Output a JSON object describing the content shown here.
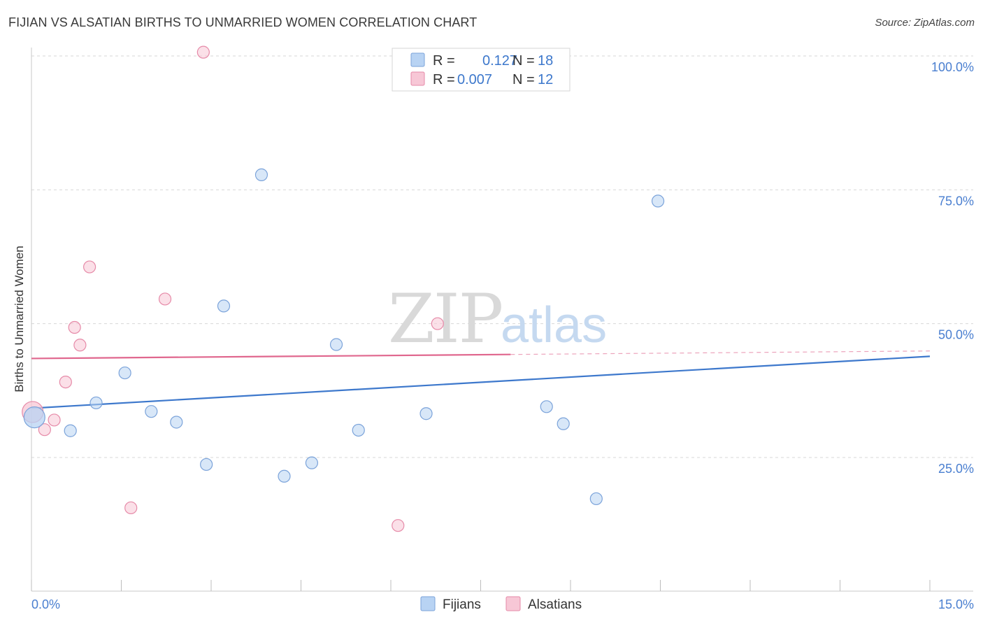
{
  "title": "FIJIAN VS ALSATIAN BIRTHS TO UNMARRIED WOMEN CORRELATION CHART",
  "source": "Source: ZipAtlas.com",
  "watermark": {
    "zip": "ZIP",
    "atlas": "atlas"
  },
  "colors": {
    "blue_fill": "#b8d3f3",
    "blue_stroke": "#7ba3da",
    "blue_line": "#3d78cc",
    "pink_fill": "#f7c7d6",
    "pink_stroke": "#e68aa8",
    "pink_line": "#e0678e",
    "label_blue": "#4a7fd0",
    "grid": "#d7d7d7"
  },
  "legend": {
    "rows": [
      {
        "series": "Fijians",
        "r_label": "R =",
        "r_value": "0.127",
        "n_label": "N =",
        "n_value": "18"
      },
      {
        "series": "Alsatians",
        "r_label": "R =",
        "r_value": "0.007",
        "n_label": "N =",
        "n_value": "12"
      }
    ]
  },
  "bottom_legend": [
    "Fijians",
    "Alsatians"
  ],
  "chart_data": {
    "type": "scatter",
    "title": "FIJIAN VS ALSATIAN BIRTHS TO UNMARRIED WOMEN CORRELATION CHART",
    "xlabel": "",
    "ylabel": "Births to Unmarried Women",
    "xlim": [
      0,
      15
    ],
    "ylim": [
      0,
      102
    ],
    "x_tick_labels": [
      "0.0%",
      "15.0%"
    ],
    "y_ticks": [
      25,
      50,
      75,
      100
    ],
    "y_tick_labels": [
      "25.0%",
      "50.0%",
      "75.0%",
      "100.0%"
    ],
    "grid": true,
    "legend_position": "top-center",
    "series": [
      {
        "name": "Fijians",
        "color": "#b8d3f3",
        "r": 0.127,
        "n": 18,
        "points": [
          {
            "x": 0.05,
            "y": 32.5,
            "big": true
          },
          {
            "x": 0.65,
            "y": 30.0
          },
          {
            "x": 1.08,
            "y": 35.2
          },
          {
            "x": 1.56,
            "y": 40.8
          },
          {
            "x": 2.0,
            "y": 33.6
          },
          {
            "x": 2.42,
            "y": 31.6
          },
          {
            "x": 2.92,
            "y": 23.7
          },
          {
            "x": 3.21,
            "y": 53.3
          },
          {
            "x": 3.84,
            "y": 77.8
          },
          {
            "x": 4.22,
            "y": 21.5
          },
          {
            "x": 4.68,
            "y": 24.0
          },
          {
            "x": 5.09,
            "y": 46.1
          },
          {
            "x": 5.46,
            "y": 30.1
          },
          {
            "x": 6.59,
            "y": 33.2
          },
          {
            "x": 8.6,
            "y": 34.5
          },
          {
            "x": 8.88,
            "y": 31.3
          },
          {
            "x": 9.43,
            "y": 17.3
          },
          {
            "x": 10.46,
            "y": 72.9
          }
        ],
        "trend": {
          "x1": 0,
          "y1": 34.2,
          "x2": 15,
          "y2": 43.9,
          "dashed_from": null
        }
      },
      {
        "name": "Alsatians",
        "color": "#f7c7d6",
        "r": 0.007,
        "n": 12,
        "points": [
          {
            "x": 0.02,
            "y": 33.5,
            "big": true
          },
          {
            "x": 0.22,
            "y": 30.2
          },
          {
            "x": 0.38,
            "y": 32.0
          },
          {
            "x": 0.57,
            "y": 39.1
          },
          {
            "x": 0.72,
            "y": 49.3
          },
          {
            "x": 0.81,
            "y": 46.0
          },
          {
            "x": 0.97,
            "y": 60.6
          },
          {
            "x": 1.66,
            "y": 15.6
          },
          {
            "x": 2.23,
            "y": 54.6
          },
          {
            "x": 2.87,
            "y": 100.7
          },
          {
            "x": 6.12,
            "y": 12.3
          },
          {
            "x": 6.78,
            "y": 50.0
          }
        ],
        "trend": {
          "x1": 0,
          "y1": 43.5,
          "x2": 15,
          "y2": 44.9,
          "dashed_from": 8.0
        }
      }
    ]
  }
}
